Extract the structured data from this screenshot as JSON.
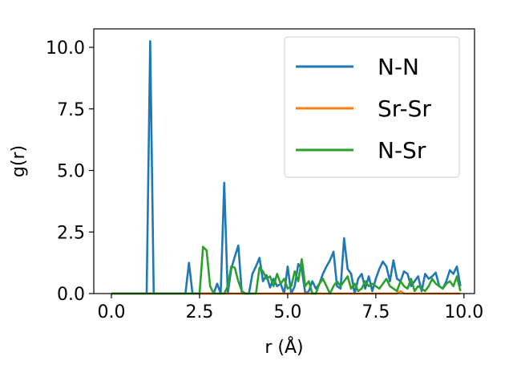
{
  "chart_data": {
    "type": "line",
    "xlabel": "r (Å)",
    "ylabel": "g(r)",
    "xlim": [
      -0.5,
      10.3
    ],
    "ylim": [
      0,
      10.75
    ],
    "xticks": [
      0.0,
      2.5,
      5.0,
      7.5,
      10.0
    ],
    "xtick_labels": [
      "0.0",
      "2.5",
      "5.0",
      "7.5",
      "10.0"
    ],
    "yticks": [
      0.0,
      2.5,
      5.0,
      7.5,
      10.0
    ],
    "ytick_labels": [
      "0.0",
      "2.5",
      "5.0",
      "7.5",
      "10.0"
    ],
    "grid": false,
    "legend_position": "top-right",
    "x": [
      0.0,
      0.1,
      0.2,
      0.3,
      0.4,
      0.5,
      0.6,
      0.7,
      0.8,
      0.9,
      1.0,
      1.1,
      1.2,
      1.3,
      1.4,
      1.5,
      1.6,
      1.7,
      1.8,
      1.9,
      2.0,
      2.1,
      2.2,
      2.3,
      2.4,
      2.5,
      2.6,
      2.7,
      2.8,
      2.9,
      3.0,
      3.1,
      3.2,
      3.3,
      3.4,
      3.5,
      3.6,
      3.7,
      3.8,
      3.9,
      4.0,
      4.1,
      4.2,
      4.3,
      4.4,
      4.5,
      4.6,
      4.7,
      4.8,
      4.9,
      5.0,
      5.1,
      5.2,
      5.3,
      5.4,
      5.5,
      5.6,
      5.7,
      5.8,
      5.9,
      6.0,
      6.1,
      6.2,
      6.3,
      6.4,
      6.5,
      6.6,
      6.7,
      6.8,
      6.9,
      7.0,
      7.1,
      7.2,
      7.3,
      7.4,
      7.5,
      7.6,
      7.7,
      7.8,
      7.9,
      8.0,
      8.1,
      8.2,
      8.3,
      8.4,
      8.5,
      8.6,
      8.7,
      8.8,
      8.9,
      9.0,
      9.1,
      9.2,
      9.3,
      9.4,
      9.5,
      9.6,
      9.7,
      9.8,
      9.9
    ],
    "series": [
      {
        "name": "N-N",
        "color": "#1f77b4",
        "values": [
          0,
          0,
          0,
          0,
          0,
          0,
          0,
          0,
          0,
          0,
          0,
          10.25,
          0,
          0,
          0,
          0,
          0,
          0,
          0,
          0,
          0,
          0,
          1.25,
          0,
          0,
          0,
          0,
          0,
          0,
          0,
          0.4,
          0,
          4.5,
          0,
          1.0,
          1.5,
          1.95,
          0,
          0,
          0,
          0.8,
          1.1,
          1.45,
          0.5,
          0.75,
          0.25,
          0.6,
          0.3,
          0.4,
          0,
          1.1,
          0,
          0.3,
          1.2,
          1.0,
          0,
          0.1,
          0.5,
          0.2,
          0.4,
          0.8,
          1.1,
          1.35,
          1.7,
          0.3,
          0.2,
          2.25,
          1.0,
          0.8,
          0,
          0.6,
          0.8,
          0.2,
          0.7,
          0.1,
          0.6,
          1.0,
          1.3,
          1.1,
          0.5,
          1.35,
          0.6,
          0.5,
          0.9,
          0.8,
          0.3,
          0.5,
          0.7,
          0.1,
          0.8,
          0.6,
          0.7,
          0.85,
          0.3,
          0.2,
          0.5,
          0.95,
          0.8,
          1.1,
          0.3
        ]
      },
      {
        "name": "Sr-Sr",
        "color": "#ff7f0e",
        "values": [
          0,
          0,
          0,
          0,
          0,
          0,
          0,
          0,
          0,
          0,
          0,
          0,
          0,
          0,
          0,
          0,
          0,
          0,
          0,
          0,
          0,
          0,
          0,
          0,
          0,
          0,
          0,
          0,
          0,
          0,
          0,
          0,
          0,
          0,
          0,
          0,
          0,
          0,
          0,
          0,
          0,
          0,
          0,
          0,
          0,
          0,
          0,
          0,
          0,
          0,
          0,
          0,
          0,
          0,
          0,
          0,
          0,
          0,
          0,
          0,
          0,
          0,
          0,
          0,
          0,
          0,
          0,
          0,
          0,
          0,
          0,
          0,
          0,
          0,
          0,
          0,
          0,
          0,
          0,
          0,
          0,
          0,
          0.1,
          0,
          0,
          0,
          0,
          0,
          0,
          0,
          0,
          0,
          0,
          0,
          0,
          0,
          0,
          0,
          0,
          0
        ]
      },
      {
        "name": "N-Sr",
        "color": "#2ca02c",
        "values": [
          0,
          0,
          0,
          0,
          0,
          0,
          0,
          0,
          0,
          0,
          0,
          0,
          0,
          0,
          0,
          0,
          0,
          0,
          0,
          0,
          0,
          0,
          0,
          0,
          0,
          0,
          1.9,
          1.75,
          0.3,
          0,
          0,
          0,
          0,
          0.3,
          1.1,
          1.05,
          0.5,
          0.1,
          0,
          0,
          0,
          0,
          1.05,
          0.9,
          0.6,
          0.7,
          0.3,
          0.8,
          0.4,
          0.6,
          0.2,
          0.3,
          0.9,
          0.5,
          1.4,
          0.3,
          0.5,
          0,
          0,
          0.4,
          0.6,
          0.3,
          0,
          0.3,
          0.5,
          0.3,
          0.5,
          0.7,
          0.2,
          0.4,
          0.1,
          0.2,
          0.5,
          0.3,
          0.4,
          0.3,
          0.2,
          0.4,
          0.6,
          0.3,
          0.2,
          0.1,
          0.5,
          0.3,
          0.2,
          0.6,
          0.1,
          0.3,
          0.2,
          0.1,
          0.3,
          0.6,
          0.4,
          0.3,
          0.2,
          0.4,
          0.5,
          0.3,
          0.7,
          0.1
        ]
      }
    ]
  }
}
